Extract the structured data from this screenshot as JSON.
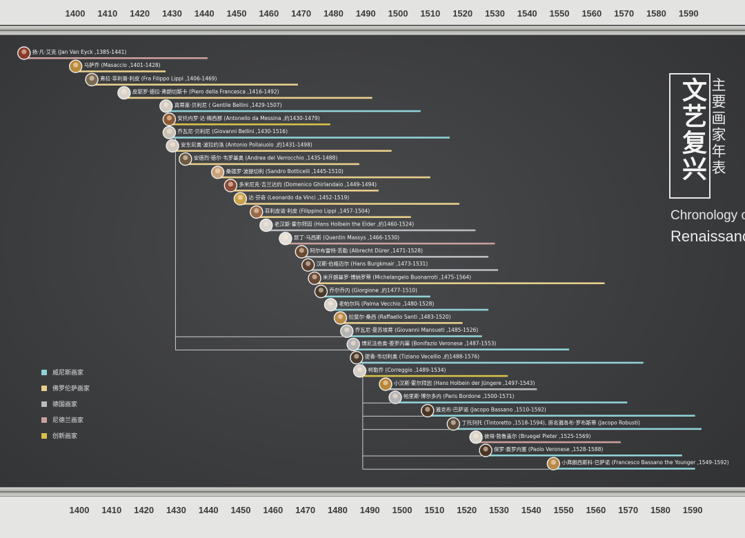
{
  "title": {
    "main": "文艺复兴",
    "sub": "主要画家年表",
    "en_line1": "Chronology of",
    "en_line2": "Renaissance"
  },
  "chart_data": {
    "type": "timeline",
    "x_axis": {
      "range": [
        1395,
        1600
      ],
      "ticks": [
        1400,
        1410,
        1420,
        1430,
        1440,
        1450,
        1460,
        1470,
        1480,
        1490,
        1500,
        1510,
        1520,
        1530,
        1540,
        1550,
        1560,
        1570,
        1580,
        1590
      ]
    },
    "categories": [
      {
        "id": "venetian",
        "name": "威尼斯画家",
        "color": "#8fd3d8"
      },
      {
        "id": "florentine",
        "name": "佛罗伦萨画家",
        "color": "#e8cf8c"
      },
      {
        "id": "german",
        "name": "德国画家",
        "color": "#b9bcc0"
      },
      {
        "id": "netherlandish",
        "name": "尼德兰画家",
        "color": "#caa09c"
      },
      {
        "id": "innovative",
        "name": "创新画家",
        "color": "#d9c04a"
      }
    ],
    "painters": [
      {
        "label": "扬·凡·艾克 (Jan Van Eyck ,1385-1441)",
        "start": 1385,
        "end": 1441,
        "category": "netherlandish",
        "portrait": "#8a3b2a"
      },
      {
        "label": "马萨乔 (Masaccio ,1401-1428)",
        "start": 1401,
        "end": 1428,
        "category": "florentine",
        "portrait": "#b98a3c"
      },
      {
        "label": "弗拉·菲利普·利皮 (Fra Filippo Lippi ,1406-1469)",
        "start": 1406,
        "end": 1469,
        "category": "florentine",
        "portrait": "#7a6a50"
      },
      {
        "label": "皮耶罗·德拉·弗朗切斯卡 (Piero della Francesca ,1416-1492)",
        "start": 1416,
        "end": 1492,
        "category": "florentine",
        "portrait": "#d8d4cc"
      },
      {
        "label": "真蒂莱·贝利尼 ( Gentile Bellini ,1429-1507)",
        "start": 1429,
        "end": 1507,
        "category": "venetian",
        "portrait": "#d0ccc4"
      },
      {
        "label": "安托内罗·达·梅西那 (Antonello da Messina ,约1430-1479)",
        "start": 1430,
        "end": 1479,
        "category": "innovative",
        "portrait": "#8b5a33"
      },
      {
        "label": "乔瓦尼·贝利尼 (Giovanni Bellini ,1430-1516)",
        "start": 1430,
        "end": 1516,
        "category": "venetian",
        "portrait": "#c8c2b6"
      },
      {
        "label": "安东尼奥·波拉约洛 (Antonio Pollaiuolo ,约1431-1498)",
        "start": 1431,
        "end": 1498,
        "category": "florentine",
        "portrait": "#cfcac0"
      },
      {
        "label": "安德烈·德尔·韦罗基奥 (Andrea del Verrocchio ,1435-1488)",
        "start": 1435,
        "end": 1488,
        "category": "florentine",
        "portrait": "#6d5a40"
      },
      {
        "label": "桑德罗·波提切利 (Sandro Botticelli ,1445-1510)",
        "start": 1445,
        "end": 1510,
        "category": "florentine",
        "portrait": "#c9a27a"
      },
      {
        "label": "多米尼克·吉兰达约 (Domenico Ghirlandaio ,1449-1494)",
        "start": 1449,
        "end": 1494,
        "category": "florentine",
        "portrait": "#8a4a35"
      },
      {
        "label": "达·芬奇 (Leonardo da Vinci ,1452-1519)",
        "start": 1452,
        "end": 1519,
        "category": "florentine",
        "portrait": "#caa24a"
      },
      {
        "label": "菲利皮诺·利皮 (Filippino Lippi ,1457-1504)",
        "start": 1457,
        "end": 1504,
        "category": "florentine",
        "portrait": "#9a6a45"
      },
      {
        "label": "老汉斯·霍尔拜因 (Hans Holbein the Elder ,约1460-1524)",
        "start": 1460,
        "end": 1524,
        "category": "german",
        "portrait": "#d8d6d0"
      },
      {
        "label": "昆丁·马西斯 (Quentin Massys ,1466-1530)",
        "start": 1466,
        "end": 1530,
        "category": "netherlandish",
        "portrait": "#e2ded6"
      },
      {
        "label": "阿尔布雷特·丢勒 (Albrecht Dürer ,1471-1528)",
        "start": 1471,
        "end": 1528,
        "category": "german",
        "portrait": "#6a4a30"
      },
      {
        "label": "汉斯·伯格迈尔 (Hans Burgkmair ,1473-1531)",
        "start": 1473,
        "end": 1531,
        "category": "german",
        "portrait": "#5a4030"
      },
      {
        "label": "米开朗基罗·博纳罗蒂 (Michelangelo Buonarroti ,1475-1564)",
        "start": 1475,
        "end": 1564,
        "category": "florentine",
        "portrait": "#6a4a35"
      },
      {
        "label": "乔尔乔内 (Giorgione ,约1477-1510)",
        "start": 1477,
        "end": 1510,
        "category": "venetian",
        "portrait": "#4a3a2c"
      },
      {
        "label": "老帕尔玛 (Palma Vecchio ,1480-1528)",
        "start": 1480,
        "end": 1528,
        "category": "venetian",
        "portrait": "#d6d2ca"
      },
      {
        "label": "拉斐尔·桑西 (Raffaello Santi ,1483-1520)",
        "start": 1483,
        "end": 1520,
        "category": "florentine",
        "portrait": "#b88a48"
      },
      {
        "label": "乔瓦尼·曼苏埃蒂 (Giovanni Mansueti ,1485-1526)",
        "start": 1485,
        "end": 1526,
        "category": "venetian",
        "portrait": "#b4b4b4"
      },
      {
        "label": "博尼法奇奥·委罗内塞 (Bonifazio Veronese ,1487-1553)",
        "start": 1487,
        "end": 1553,
        "category": "venetian",
        "portrait": "#b4b4b4"
      },
      {
        "label": "提香·韦切利奥 (Tiziano Vecellio ,约1488-1576)",
        "start": 1488,
        "end": 1576,
        "category": "venetian",
        "portrait": "#4a3a2c"
      },
      {
        "label": "柯勒乔 (Correggio ,1489-1534)",
        "start": 1489,
        "end": 1534,
        "category": "innovative",
        "portrait": "#d4d0c8"
      },
      {
        "label": "小汉斯·霍尔拜因 (Hans Holbein der Jüngere ,1497-1543)",
        "start": 1497,
        "end": 1543,
        "category": "german",
        "portrait": "#b8863a"
      },
      {
        "label": "帕里斯·博尔多内 (Paris Bordone ,1500-1571)",
        "start": 1500,
        "end": 1571,
        "category": "venetian",
        "portrait": "#b4b4b4"
      },
      {
        "label": "雅克布·巴萨诺 (Jacopo Bassano ,1510-1592)",
        "start": 1510,
        "end": 1592,
        "category": "venetian",
        "portrait": "#4a3424"
      },
      {
        "label": "丁托列托 (Tintoretto ,1518-1594), 原名雅各布·罗布斯蒂 (Jacopo Robusti)",
        "start": 1518,
        "end": 1594,
        "category": "venetian",
        "portrait": "#5a4a3a"
      },
      {
        "label": "彼得·勃鲁盖尔 (Bruegel Pieter ,1525-1569)",
        "start": 1525,
        "end": 1569,
        "category": "netherlandish",
        "portrait": "#d8d4cc"
      },
      {
        "label": "保罗·委罗内塞 (Paolo Veronese ,1528-1588)",
        "start": 1528,
        "end": 1588,
        "category": "venetian",
        "portrait": "#4a3424"
      },
      {
        "label": "小弗朗西斯科·巴萨诺 (Francesco Bassano the Younger ,1549-1592)",
        "start": 1549,
        "end": 1592,
        "category": "venetian",
        "portrait": "#b88a48"
      }
    ],
    "tree": [
      {
        "from": 6,
        "to": [
          21,
          22
        ]
      },
      {
        "from": 23,
        "to": [
          26,
          27,
          28,
          30,
          31
        ]
      }
    ]
  }
}
